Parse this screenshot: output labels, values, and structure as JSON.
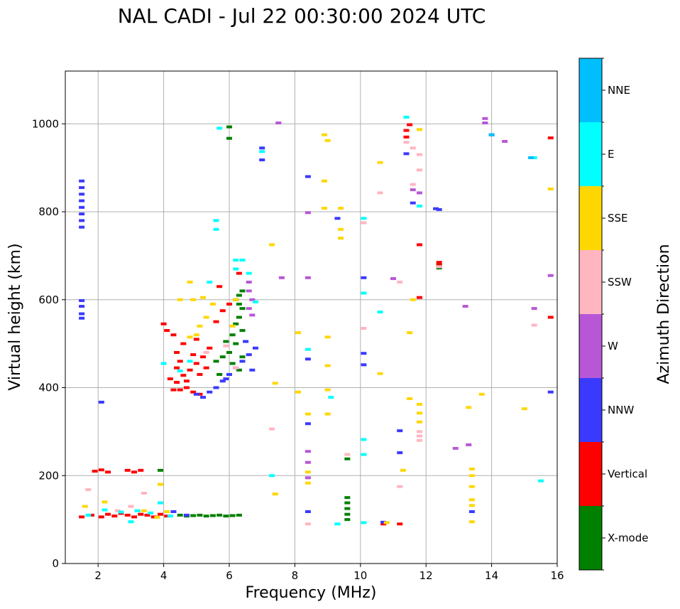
{
  "chart_data": {
    "type": "scatter",
    "title": "NAL CADI - Jul 22 00:30:00 2024 UTC",
    "xlabel": "Frequency (MHz)",
    "ylabel": "Virtual height (km)",
    "xlim": [
      1,
      16
    ],
    "ylim": [
      0,
      1120
    ],
    "xticks": [
      2,
      4,
      6,
      8,
      10,
      12,
      14,
      16
    ],
    "yticks": [
      0,
      200,
      400,
      600,
      800,
      1000
    ],
    "grid": true,
    "colorbar": {
      "label": "Azimuth Direction",
      "categories": [
        {
          "name": "X-mode",
          "color": "#008000"
        },
        {
          "name": "Vertical",
          "color": "#ff0000"
        },
        {
          "name": "NNW",
          "color": "#3a3aff"
        },
        {
          "name": "W",
          "color": "#b757d6"
        },
        {
          "name": "SSW",
          "color": "#ffb6c1"
        },
        {
          "name": "SSE",
          "color": "#ffd700"
        },
        {
          "name": "E",
          "color": "#00ffff"
        },
        {
          "name": "NNE",
          "color": "#00bfff"
        }
      ]
    },
    "series": [
      {
        "name": "X-mode",
        "color": "#008000",
        "points": [
          [
            4.5,
            110
          ],
          [
            4.7,
            108
          ],
          [
            4.9,
            109
          ],
          [
            5.1,
            110
          ],
          [
            5.3,
            108
          ],
          [
            5.5,
            109
          ],
          [
            5.7,
            110
          ],
          [
            5.9,
            108
          ],
          [
            6.1,
            109
          ],
          [
            6.3,
            110
          ],
          [
            3.9,
            212
          ],
          [
            6.0,
            993
          ],
          [
            6.0,
            967
          ],
          [
            6.2,
            600
          ],
          [
            6.3,
            590
          ],
          [
            6.4,
            580
          ],
          [
            6.3,
            560
          ],
          [
            6.2,
            545
          ],
          [
            6.4,
            530
          ],
          [
            6.1,
            520
          ],
          [
            5.9,
            505
          ],
          [
            6.0,
            480
          ],
          [
            5.8,
            470
          ],
          [
            5.6,
            460
          ],
          [
            6.1,
            455
          ],
          [
            5.7,
            430
          ],
          [
            6.3,
            440
          ],
          [
            6.4,
            620
          ],
          [
            6.3,
            610
          ],
          [
            6.2,
            500
          ],
          [
            6.4,
            470
          ],
          [
            9.6,
            150
          ],
          [
            9.6,
            138
          ],
          [
            9.6,
            125
          ],
          [
            9.6,
            112
          ],
          [
            9.6,
            100
          ],
          [
            9.6,
            238
          ],
          [
            12.4,
            680
          ],
          [
            12.4,
            672
          ]
        ]
      },
      {
        "name": "Vertical",
        "color": "#ff0000",
        "points": [
          [
            1.5,
            106
          ],
          [
            1.8,
            110
          ],
          [
            2.1,
            106
          ],
          [
            2.3,
            112
          ],
          [
            2.5,
            108
          ],
          [
            2.7,
            114
          ],
          [
            2.9,
            110
          ],
          [
            3.1,
            106
          ],
          [
            3.3,
            112
          ],
          [
            3.5,
            110
          ],
          [
            3.7,
            106
          ],
          [
            3.9,
            112
          ],
          [
            4.1,
            108
          ],
          [
            1.9,
            210
          ],
          [
            2.1,
            213
          ],
          [
            2.3,
            208
          ],
          [
            2.9,
            212
          ],
          [
            3.1,
            208
          ],
          [
            3.3,
            212
          ],
          [
            4.3,
            395
          ],
          [
            4.5,
            395
          ],
          [
            4.7,
            400
          ],
          [
            4.9,
            390
          ],
          [
            5.1,
            385
          ],
          [
            4.2,
            420
          ],
          [
            4.4,
            412
          ],
          [
            4.6,
            428
          ],
          [
            4.8,
            440
          ],
          [
            5.0,
            455
          ],
          [
            5.2,
            470
          ],
          [
            4.4,
            480
          ],
          [
            4.6,
            500
          ],
          [
            4.3,
            520
          ],
          [
            4.0,
            545
          ],
          [
            5.0,
            510
          ],
          [
            5.4,
            490
          ],
          [
            4.1,
            530
          ],
          [
            4.5,
            460
          ],
          [
            4.9,
            475
          ],
          [
            5.3,
            445
          ],
          [
            4.7,
            415
          ],
          [
            4.4,
            445
          ],
          [
            5.1,
            430
          ],
          [
            5.6,
            550
          ],
          [
            5.8,
            575
          ],
          [
            6.0,
            590
          ],
          [
            6.3,
            660
          ],
          [
            5.7,
            630
          ],
          [
            11.4,
            985
          ],
          [
            11.4,
            970
          ],
          [
            11.5,
            998
          ],
          [
            11.8,
            725
          ],
          [
            11.8,
            605
          ],
          [
            12.4,
            678
          ],
          [
            12.4,
            685
          ],
          [
            15.8,
            968
          ],
          [
            15.8,
            560
          ],
          [
            10.7,
            90
          ],
          [
            11.2,
            90
          ]
        ]
      },
      {
        "name": "NNW",
        "color": "#3a3aff",
        "points": [
          [
            1.5,
            870
          ],
          [
            1.5,
            855
          ],
          [
            1.5,
            840
          ],
          [
            1.5,
            825
          ],
          [
            1.5,
            810
          ],
          [
            1.5,
            795
          ],
          [
            1.5,
            780
          ],
          [
            1.5,
            765
          ],
          [
            1.5,
            598
          ],
          [
            1.5,
            585
          ],
          [
            1.5,
            568
          ],
          [
            1.5,
            558
          ],
          [
            2.1,
            367
          ],
          [
            4.3,
            118
          ],
          [
            4.7,
            110
          ],
          [
            5.0,
            385
          ],
          [
            5.2,
            378
          ],
          [
            5.4,
            390
          ],
          [
            5.6,
            400
          ],
          [
            5.8,
            415
          ],
          [
            6.0,
            430
          ],
          [
            6.2,
            445
          ],
          [
            6.4,
            460
          ],
          [
            6.6,
            475
          ],
          [
            6.8,
            490
          ],
          [
            6.5,
            505
          ],
          [
            5.9,
            420
          ],
          [
            6.7,
            440
          ],
          [
            7.0,
            945
          ],
          [
            7.0,
            918
          ],
          [
            8.4,
            880
          ],
          [
            8.4,
            465
          ],
          [
            8.4,
            318
          ],
          [
            8.4,
            118
          ],
          [
            9.3,
            785
          ],
          [
            10.1,
            650
          ],
          [
            10.1,
            478
          ],
          [
            10.1,
            452
          ],
          [
            10.7,
            94
          ],
          [
            11.2,
            302
          ],
          [
            11.2,
            252
          ],
          [
            11.4,
            932
          ],
          [
            11.6,
            820
          ],
          [
            12.4,
            805
          ],
          [
            12.3,
            807
          ],
          [
            13.4,
            118
          ],
          [
            14.0,
            975
          ],
          [
            15.8,
            390
          ]
        ]
      },
      {
        "name": "W",
        "color": "#b757d6",
        "points": [
          [
            6.6,
            640
          ],
          [
            6.6,
            620
          ],
          [
            6.7,
            600
          ],
          [
            6.6,
            580
          ],
          [
            6.7,
            565
          ],
          [
            7.5,
            1002
          ],
          [
            7.6,
            650
          ],
          [
            8.4,
            798
          ],
          [
            8.4,
            650
          ],
          [
            8.4,
            255
          ],
          [
            8.4,
            230
          ],
          [
            8.4,
            195
          ],
          [
            11.0,
            648
          ],
          [
            11.6,
            850
          ],
          [
            11.8,
            843
          ],
          [
            12.9,
            262
          ],
          [
            13.2,
            585
          ],
          [
            13.3,
            270
          ],
          [
            13.8,
            1012
          ],
          [
            13.8,
            1002
          ],
          [
            14.4,
            960
          ],
          [
            15.3,
            580
          ],
          [
            15.8,
            655
          ]
        ]
      },
      {
        "name": "SSW",
        "color": "#ffb6c1",
        "points": [
          [
            1.7,
            168
          ],
          [
            2.6,
            120
          ],
          [
            3.0,
            130
          ],
          [
            3.4,
            160
          ],
          [
            5.3,
            480
          ],
          [
            5.9,
            495
          ],
          [
            6.2,
            445
          ],
          [
            7.3,
            306
          ],
          [
            8.4,
            90
          ],
          [
            9.6,
            248
          ],
          [
            10.1,
            535
          ],
          [
            10.6,
            843
          ],
          [
            11.2,
            640
          ],
          [
            11.4,
            958
          ],
          [
            11.6,
            945
          ],
          [
            11.6,
            862
          ],
          [
            11.8,
            930
          ],
          [
            11.8,
            895
          ],
          [
            11.8,
            280
          ],
          [
            11.8,
            290
          ],
          [
            11.8,
            300
          ],
          [
            12.4,
            675
          ],
          [
            15.3,
            542
          ],
          [
            10.1,
            775
          ],
          [
            11.2,
            175
          ]
        ]
      },
      {
        "name": "SSE",
        "color": "#ffd700",
        "points": [
          [
            1.6,
            130
          ],
          [
            2.2,
            140
          ],
          [
            3.4,
            120
          ],
          [
            3.8,
            105
          ],
          [
            4.1,
            118
          ],
          [
            3.9,
            180
          ],
          [
            4.8,
            515
          ],
          [
            5.0,
            520
          ],
          [
            5.1,
            540
          ],
          [
            5.3,
            560
          ],
          [
            5.5,
            590
          ],
          [
            5.2,
            605
          ],
          [
            4.9,
            600
          ],
          [
            4.5,
            600
          ],
          [
            4.8,
            640
          ],
          [
            6.1,
            540
          ],
          [
            6.2,
            600
          ],
          [
            7.3,
            725
          ],
          [
            7.4,
            158
          ],
          [
            7.4,
            410
          ],
          [
            8.1,
            390
          ],
          [
            8.1,
            525
          ],
          [
            8.4,
            340
          ],
          [
            8.4,
            208
          ],
          [
            8.4,
            183
          ],
          [
            8.9,
            975
          ],
          [
            8.9,
            870
          ],
          [
            8.9,
            808
          ],
          [
            9.0,
            962
          ],
          [
            9.0,
            515
          ],
          [
            9.0,
            450
          ],
          [
            9.0,
            395
          ],
          [
            9.0,
            340
          ],
          [
            9.4,
            808
          ],
          [
            9.4,
            760
          ],
          [
            9.4,
            740
          ],
          [
            10.6,
            912
          ],
          [
            10.6,
            432
          ],
          [
            10.8,
            93
          ],
          [
            11.3,
            212
          ],
          [
            11.5,
            525
          ],
          [
            11.5,
            375
          ],
          [
            11.6,
            600
          ],
          [
            11.8,
            362
          ],
          [
            11.8,
            342
          ],
          [
            11.8,
            322
          ],
          [
            11.8,
            987
          ],
          [
            13.3,
            355
          ],
          [
            13.4,
            215
          ],
          [
            13.4,
            200
          ],
          [
            13.4,
            175
          ],
          [
            13.4,
            145
          ],
          [
            13.4,
            132
          ],
          [
            13.4,
            95
          ],
          [
            13.7,
            385
          ],
          [
            15.0,
            352
          ],
          [
            15.8,
            852
          ]
        ]
      },
      {
        "name": "E",
        "color": "#00ffff",
        "points": [
          [
            1.7,
            110
          ],
          [
            2.2,
            122
          ],
          [
            2.7,
            117
          ],
          [
            3.0,
            95
          ],
          [
            3.2,
            120
          ],
          [
            3.6,
            115
          ],
          [
            3.9,
            138
          ],
          [
            4.0,
            455
          ],
          [
            4.2,
            108
          ],
          [
            4.5,
            438
          ],
          [
            4.8,
            460
          ],
          [
            5.4,
            640
          ],
          [
            5.6,
            780
          ],
          [
            5.6,
            760
          ],
          [
            5.7,
            990
          ],
          [
            6.2,
            690
          ],
          [
            6.2,
            670
          ],
          [
            6.4,
            690
          ],
          [
            6.8,
            595
          ],
          [
            6.6,
            660
          ],
          [
            7.3,
            200
          ],
          [
            7.0,
            937
          ],
          [
            8.4,
            487
          ],
          [
            9.1,
            378
          ],
          [
            9.3,
            90
          ],
          [
            10.1,
            785
          ],
          [
            10.1,
            615
          ],
          [
            10.1,
            282
          ],
          [
            10.1,
            248
          ],
          [
            10.1,
            93
          ],
          [
            10.6,
            572
          ],
          [
            11.4,
            1015
          ],
          [
            11.8,
            813
          ],
          [
            15.3,
            923
          ],
          [
            15.5,
            188
          ]
        ]
      },
      {
        "name": "NNE",
        "color": "#00bfff",
        "points": [
          [
            14.0,
            975
          ],
          [
            15.2,
            923
          ]
        ]
      }
    ]
  }
}
